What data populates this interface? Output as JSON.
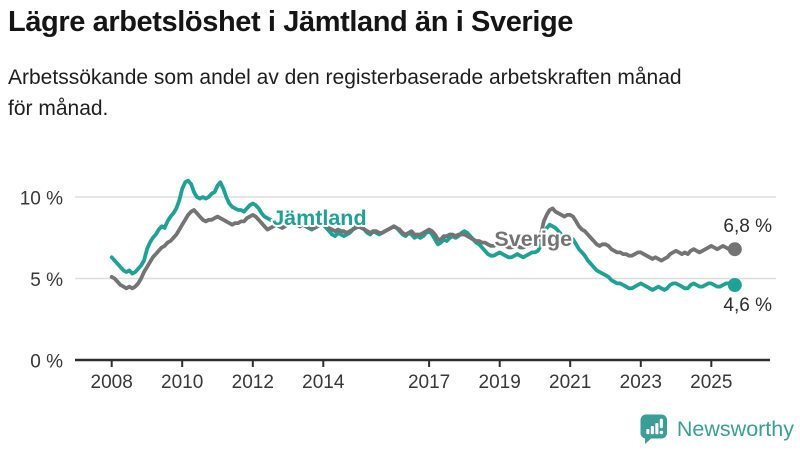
{
  "title": "Lägre arbetslöshet i Jämtland än i Sverige",
  "subtitle": "Arbetssökande som andel av den registerbaserade arbetskraften månad\nför månad.",
  "logo": {
    "icon": "newsworthy-chart-bubble-icon",
    "text": "Newsworthy"
  },
  "colors": {
    "jamtland_teal": "#1fa295",
    "sverige_gray": "#747474",
    "grid": "#dedede",
    "axis": "#2e2e2e",
    "logo_teal": "#3a9e97"
  },
  "chart_data": {
    "type": "line",
    "x_unit": "month",
    "x_start": "2008-01",
    "x_end": "2025-09",
    "ylabel": "",
    "xlabel": "",
    "ylim": [
      0,
      11.7
    ],
    "grid": true,
    "y_ticks": [
      0,
      5,
      10
    ],
    "y_tick_labels": [
      "0 %",
      "5 %",
      "10 %"
    ],
    "x_ticks": [
      2008,
      2010,
      2012,
      2014,
      2017,
      2019,
      2021,
      2023,
      2025
    ],
    "series": [
      {
        "name": "Jämtland",
        "slug": "jamtland",
        "color": "#1fa295",
        "label_x_year": 2012.55,
        "label_y_pct": 8.28,
        "end_value": 4.6,
        "end_label": "4,6 %",
        "end_label_position": "below",
        "values": [
          6.3,
          6.1,
          5.9,
          5.7,
          5.5,
          5.4,
          5.5,
          5.3,
          5.4,
          5.6,
          5.8,
          6.1,
          6.8,
          7.2,
          7.5,
          7.7,
          8.0,
          8.2,
          8.1,
          8.5,
          8.8,
          9.0,
          9.3,
          9.8,
          10.5,
          10.9,
          11.0,
          10.8,
          10.3,
          10.0,
          9.9,
          10.0,
          9.9,
          10.0,
          10.2,
          10.3,
          10.7,
          10.9,
          10.5,
          10.0,
          9.6,
          9.4,
          9.3,
          9.2,
          9.2,
          9.1,
          9.3,
          9.5,
          9.6,
          9.5,
          9.3,
          9.0,
          8.8,
          8.7,
          8.6,
          8.5,
          8.4,
          8.5,
          8.6,
          8.8,
          8.9,
          8.8,
          8.6,
          8.4,
          8.2,
          8.3,
          8.2,
          8.1,
          8.0,
          8.1,
          8.2,
          8.4,
          8.3,
          8.1,
          7.9,
          7.7,
          7.6,
          7.8,
          7.7,
          7.6,
          7.7,
          7.8,
          8.0,
          8.2,
          8.3,
          8.2,
          8.0,
          7.8,
          7.7,
          7.9,
          7.8,
          7.7,
          7.8,
          7.9,
          8.0,
          8.1,
          8.2,
          8.1,
          7.9,
          7.7,
          7.6,
          7.8,
          7.7,
          7.5,
          7.6,
          7.5,
          7.6,
          7.8,
          7.9,
          7.7,
          7.4,
          7.1,
          7.2,
          7.4,
          7.3,
          7.5,
          7.6,
          7.5,
          7.6,
          7.8,
          7.9,
          7.8,
          7.6,
          7.4,
          7.2,
          7.1,
          6.9,
          6.7,
          6.5,
          6.4,
          6.4,
          6.5,
          6.6,
          6.5,
          6.4,
          6.3,
          6.3,
          6.4,
          6.5,
          6.4,
          6.3,
          6.4,
          6.5,
          6.6,
          6.6,
          6.7,
          7.0,
          7.8,
          8.1,
          8.3,
          8.2,
          8.1,
          7.9,
          7.7,
          7.6,
          7.6,
          7.5,
          7.4,
          7.1,
          6.8,
          6.6,
          6.4,
          6.1,
          5.9,
          5.7,
          5.5,
          5.4,
          5.3,
          5.2,
          5.1,
          4.9,
          4.8,
          4.7,
          4.7,
          4.6,
          4.5,
          4.4,
          4.4,
          4.5,
          4.6,
          4.7,
          4.6,
          4.5,
          4.4,
          4.3,
          4.4,
          4.5,
          4.4,
          4.3,
          4.4,
          4.6,
          4.7,
          4.7,
          4.6,
          4.5,
          4.4,
          4.4,
          4.6,
          4.7,
          4.6,
          4.5,
          4.5,
          4.6,
          4.7,
          4.7,
          4.6,
          4.5,
          4.5,
          4.6,
          4.7,
          4.7,
          4.6,
          4.6
        ]
      },
      {
        "name": "Sverige",
        "slug": "sverige",
        "color": "#747474",
        "label_x_year": 2018.85,
        "label_y_pct": 7.0,
        "end_value": 6.8,
        "end_label": "6,8 %",
        "end_label_position": "above",
        "values": [
          5.1,
          5.0,
          4.8,
          4.6,
          4.5,
          4.4,
          4.5,
          4.4,
          4.5,
          4.7,
          5.0,
          5.4,
          5.7,
          6.0,
          6.3,
          6.5,
          6.7,
          6.9,
          7.0,
          7.2,
          7.3,
          7.5,
          7.7,
          8.0,
          8.3,
          8.6,
          8.9,
          9.1,
          9.2,
          9.0,
          8.8,
          8.6,
          8.5,
          8.6,
          8.6,
          8.7,
          8.8,
          8.7,
          8.6,
          8.5,
          8.4,
          8.3,
          8.4,
          8.4,
          8.5,
          8.5,
          8.7,
          8.8,
          8.9,
          8.8,
          8.6,
          8.4,
          8.2,
          8.0,
          8.1,
          8.2,
          8.3,
          8.2,
          8.1,
          8.2,
          8.4,
          8.5,
          8.4,
          8.3,
          8.2,
          8.3,
          8.2,
          8.2,
          8.1,
          8.1,
          8.2,
          8.3,
          8.4,
          8.3,
          8.1,
          8.0,
          7.9,
          8.0,
          7.9,
          7.9,
          7.8,
          7.9,
          8.0,
          8.1,
          8.2,
          8.1,
          8.0,
          7.9,
          7.8,
          7.9,
          7.9,
          7.8,
          7.8,
          7.9,
          8.0,
          8.1,
          8.2,
          8.1,
          8.0,
          7.8,
          7.7,
          7.8,
          7.9,
          7.7,
          7.7,
          7.7,
          7.8,
          7.9,
          8.0,
          7.9,
          7.7,
          7.4,
          7.4,
          7.6,
          7.6,
          7.7,
          7.7,
          7.6,
          7.7,
          7.7,
          7.7,
          7.6,
          7.5,
          7.4,
          7.3,
          7.3,
          7.2,
          7.2,
          7.1,
          7.0,
          7.0,
          7.1,
          7.1,
          7.1,
          7.0,
          6.9,
          6.9,
          7.0,
          7.0,
          6.9,
          6.9,
          7.0,
          7.0,
          7.1,
          7.2,
          7.3,
          7.7,
          8.5,
          8.9,
          9.2,
          9.3,
          9.1,
          9.0,
          8.9,
          8.8,
          8.9,
          8.9,
          8.8,
          8.5,
          8.2,
          8.0,
          7.9,
          7.7,
          7.5,
          7.3,
          7.1,
          7.0,
          7.1,
          7.1,
          7.0,
          6.8,
          6.7,
          6.6,
          6.6,
          6.5,
          6.5,
          6.4,
          6.4,
          6.5,
          6.6,
          6.6,
          6.5,
          6.4,
          6.3,
          6.2,
          6.3,
          6.2,
          6.1,
          6.2,
          6.3,
          6.5,
          6.6,
          6.7,
          6.6,
          6.5,
          6.6,
          6.5,
          6.7,
          6.8,
          6.7,
          6.6,
          6.7,
          6.8,
          6.9,
          7.0,
          6.9,
          6.8,
          6.9,
          7.0,
          6.9,
          6.8,
          6.7,
          6.8
        ]
      }
    ]
  }
}
